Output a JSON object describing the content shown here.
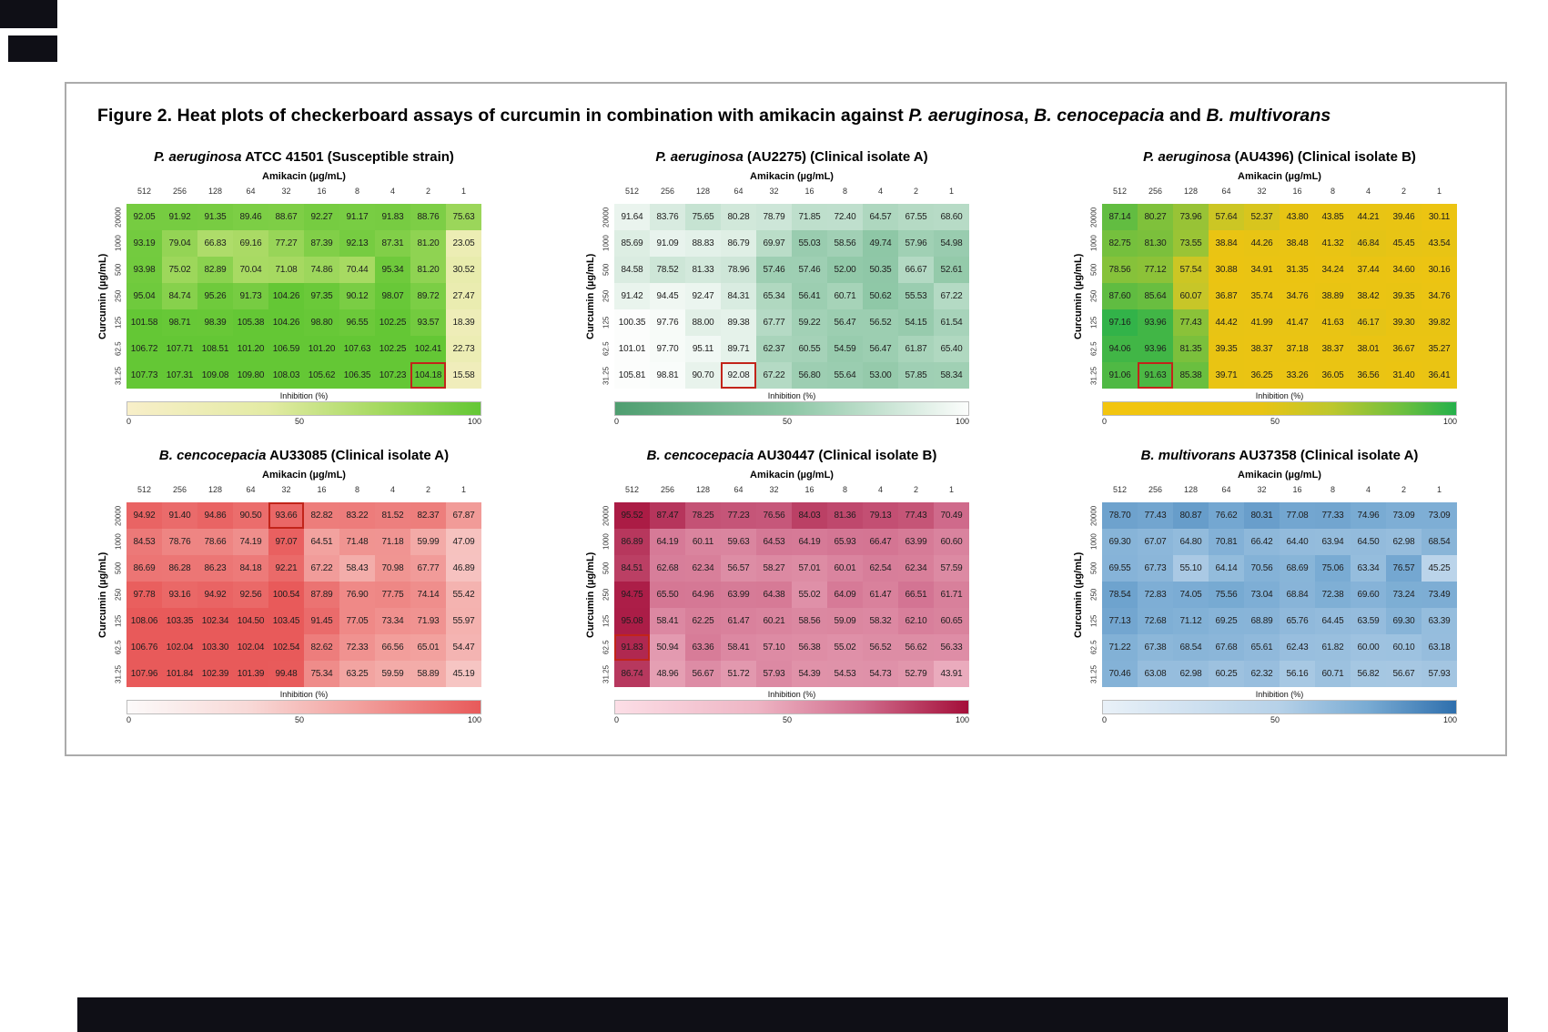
{
  "figure_title_parts": [
    {
      "text": "Figure 2. Heat plots of checkerboard assays of curcumin in combination with amikacin against ",
      "italic": false
    },
    {
      "text": "P. aeruginosa",
      "italic": true
    },
    {
      "text": ", ",
      "italic": false
    },
    {
      "text": "B. cenocepacia",
      "italic": true
    },
    {
      "text": " and ",
      "italic": false
    },
    {
      "text": "B. multivorans",
      "italic": true
    }
  ],
  "chart_data": [
    {
      "type": "heatmap",
      "id": "pa-atcc41501",
      "title_italic": "P. aeruginosa",
      "title_rest": " ATCC 41501 (Susceptible strain)",
      "xlabel": "Amikacin (µg/mL)",
      "ylabel": "Curcumin (µg/mL)",
      "x_ticks": [
        "512",
        "256",
        "128",
        "64",
        "32",
        "16",
        "8",
        "4",
        "2",
        "1"
      ],
      "y_ticks": [
        "20000",
        "1000",
        "500",
        "250",
        "125",
        "62.5",
        "31.25"
      ],
      "values": [
        [
          92.05,
          91.92,
          91.35,
          89.46,
          88.67,
          92.27,
          91.17,
          91.83,
          88.76,
          75.63
        ],
        [
          93.19,
          79.04,
          66.83,
          69.16,
          77.27,
          87.39,
          92.13,
          87.31,
          81.2,
          23.05
        ],
        [
          93.98,
          75.02,
          82.89,
          70.04,
          71.08,
          74.86,
          70.44,
          95.34,
          81.2,
          30.52
        ],
        [
          95.04,
          84.74,
          95.26,
          91.73,
          104.26,
          97.35,
          90.12,
          98.07,
          89.72,
          27.47
        ],
        [
          101.58,
          98.71,
          98.39,
          105.38,
          104.26,
          98.8,
          96.55,
          102.25,
          93.57,
          18.39
        ],
        [
          106.72,
          107.71,
          108.51,
          101.2,
          106.59,
          101.2,
          107.63,
          102.25,
          102.41,
          22.73
        ],
        [
          107.73,
          107.31,
          109.08,
          109.8,
          108.03,
          105.62,
          106.35,
          107.23,
          104.18,
          15.58
        ]
      ],
      "highlight_cell": {
        "row": 6,
        "col": 8
      },
      "colorbar": {
        "label": "Inhibition (%)",
        "ticks": [
          "0",
          "50",
          "100"
        ],
        "range": [
          0,
          100
        ]
      },
      "gradient": [
        {
          "pos": 0.0,
          "color": "#f8efc9"
        },
        {
          "pos": 0.4,
          "color": "#e3eba4"
        },
        {
          "pos": 0.7,
          "color": "#a8da63"
        },
        {
          "pos": 1.0,
          "color": "#64c735"
        }
      ]
    },
    {
      "type": "heatmap",
      "id": "pa-au2275",
      "title_italic": "P. aeruginosa",
      "title_rest": " (AU2275) (Clinical isolate A)",
      "xlabel": "Amikacin (µg/mL)",
      "ylabel": "Curcumin (µg/mL)",
      "x_ticks": [
        "512",
        "256",
        "128",
        "64",
        "32",
        "16",
        "8",
        "4",
        "2",
        "1"
      ],
      "y_ticks": [
        "20000",
        "1000",
        "500",
        "250",
        "125",
        "62.5",
        "31.25"
      ],
      "values": [
        [
          91.64,
          83.76,
          75.65,
          80.28,
          78.79,
          71.85,
          72.4,
          64.57,
          67.55,
          68.6
        ],
        [
          85.69,
          91.09,
          88.83,
          86.79,
          69.97,
          55.03,
          58.56,
          49.74,
          57.96,
          54.98
        ],
        [
          84.58,
          78.52,
          81.33,
          78.96,
          57.46,
          57.46,
          52.0,
          50.35,
          66.67,
          52.61
        ],
        [
          91.42,
          94.45,
          92.47,
          84.31,
          65.34,
          56.41,
          60.71,
          50.62,
          55.53,
          67.22
        ],
        [
          100.35,
          97.76,
          88.0,
          89.38,
          67.77,
          59.22,
          56.47,
          56.52,
          54.15,
          61.54
        ],
        [
          101.01,
          97.7,
          95.11,
          89.71,
          62.37,
          60.55,
          54.59,
          56.47,
          61.87,
          65.4
        ],
        [
          105.81,
          98.81,
          90.7,
          92.08,
          67.22,
          56.8,
          55.64,
          53.0,
          57.85,
          58.34
        ]
      ],
      "highlight_cell": {
        "row": 6,
        "col": 3
      },
      "colorbar": {
        "label": "Inhibition (%)",
        "ticks": [
          "0",
          "50",
          "100"
        ],
        "range": [
          0,
          100
        ]
      },
      "gradient": [
        {
          "pos": 0.0,
          "color": "#4f9e70"
        },
        {
          "pos": 0.5,
          "color": "#8ec7a6"
        },
        {
          "pos": 1.0,
          "color": "#fcfdfc"
        }
      ]
    },
    {
      "type": "heatmap",
      "id": "pa-au4396",
      "title_italic": "P. aeruginosa",
      "title_rest": " (AU4396) (Clinical isolate B)",
      "xlabel": "Amikacin (µg/mL)",
      "ylabel": "Curcumin (µg/mL)",
      "x_ticks": [
        "512",
        "256",
        "128",
        "64",
        "32",
        "16",
        "8",
        "4",
        "2",
        "1"
      ],
      "y_ticks": [
        "20000",
        "1000",
        "500",
        "250",
        "125",
        "62.5",
        "31.25"
      ],
      "values": [
        [
          87.14,
          80.27,
          73.96,
          57.64,
          52.37,
          43.8,
          43.85,
          44.21,
          39.46,
          30.11
        ],
        [
          82.75,
          81.3,
          73.55,
          38.84,
          44.26,
          38.48,
          41.32,
          46.84,
          45.45,
          43.54
        ],
        [
          78.56,
          77.12,
          57.54,
          30.88,
          34.91,
          31.35,
          34.24,
          37.44,
          34.6,
          30.16
        ],
        [
          87.6,
          85.64,
          60.07,
          36.87,
          35.74,
          34.76,
          38.89,
          38.42,
          39.35,
          34.76
        ],
        [
          97.16,
          93.96,
          77.43,
          44.42,
          41.99,
          41.47,
          41.63,
          46.17,
          39.3,
          39.82
        ],
        [
          94.06,
          93.96,
          81.35,
          39.35,
          38.37,
          37.18,
          38.37,
          38.01,
          36.67,
          35.27
        ],
        [
          91.06,
          91.63,
          85.38,
          39.71,
          36.25,
          33.26,
          36.05,
          36.56,
          31.4,
          36.41
        ]
      ],
      "highlight_cell": {
        "row": 6,
        "col": 1
      },
      "colorbar": {
        "label": "Inhibition (%)",
        "ticks": [
          "0",
          "50",
          "100"
        ],
        "range": [
          0,
          100
        ]
      },
      "gradient": [
        {
          "pos": 0.0,
          "color": "#f3c50f"
        },
        {
          "pos": 0.45,
          "color": "#e8c414"
        },
        {
          "pos": 0.65,
          "color": "#bcc72e"
        },
        {
          "pos": 0.85,
          "color": "#6cbf3f"
        },
        {
          "pos": 1.0,
          "color": "#24b04b"
        }
      ]
    },
    {
      "type": "heatmap",
      "id": "bc-au33085",
      "title_italic": "B. cencocepacia",
      "title_rest": "  AU33085 (Clinical isolate A)",
      "xlabel": "Amikacin (µg/mL)",
      "ylabel": "Curcumin (µg/mL)",
      "x_ticks": [
        "512",
        "256",
        "128",
        "64",
        "32",
        "16",
        "8",
        "4",
        "2",
        "1"
      ],
      "y_ticks": [
        "20000",
        "1000",
        "500",
        "250",
        "125",
        "62.5",
        "31.25"
      ],
      "values": [
        [
          94.92,
          91.4,
          94.86,
          90.5,
          93.66,
          82.82,
          83.22,
          81.52,
          82.37,
          67.87
        ],
        [
          84.53,
          78.76,
          78.66,
          74.19,
          97.07,
          64.51,
          71.48,
          71.18,
          59.99,
          47.09
        ],
        [
          86.69,
          86.28,
          86.23,
          84.18,
          92.21,
          67.22,
          58.43,
          70.98,
          67.77,
          46.89
        ],
        [
          97.78,
          93.16,
          94.92,
          92.56,
          100.54,
          87.89,
          76.9,
          77.75,
          74.14,
          55.42
        ],
        [
          108.06,
          103.35,
          102.34,
          104.5,
          103.45,
          91.45,
          77.05,
          73.34,
          71.93,
          55.97
        ],
        [
          106.76,
          102.04,
          103.3,
          102.04,
          102.54,
          82.62,
          72.33,
          66.56,
          65.01,
          54.47
        ],
        [
          107.96,
          101.84,
          102.39,
          101.39,
          99.48,
          75.34,
          63.25,
          59.59,
          58.89,
          45.19
        ]
      ],
      "highlight_cell": {
        "row": 0,
        "col": 4
      },
      "colorbar": {
        "label": "Inhibition (%)",
        "ticks": [
          "0",
          "50",
          "100"
        ],
        "range": [
          0,
          100
        ]
      },
      "gradient": [
        {
          "pos": 0.0,
          "color": "#fcfafa"
        },
        {
          "pos": 0.35,
          "color": "#f8d8d6"
        },
        {
          "pos": 0.65,
          "color": "#f2a19e"
        },
        {
          "pos": 1.0,
          "color": "#e85a5a"
        }
      ]
    },
    {
      "type": "heatmap",
      "id": "bc-au30447",
      "title_italic": "B. cencocepacia",
      "title_rest": "  AU30447 (Clinical isolate B)",
      "xlabel": "Amikacin (µg/mL)",
      "ylabel": "Curcumin (µg/mL)",
      "x_ticks": [
        "512",
        "256",
        "128",
        "64",
        "32",
        "16",
        "8",
        "4",
        "2",
        "1"
      ],
      "y_ticks": [
        "20000",
        "1000",
        "500",
        "250",
        "125",
        "62.5",
        "31.25"
      ],
      "values": [
        [
          95.52,
          87.47,
          78.25,
          77.23,
          76.56,
          84.03,
          81.36,
          79.13,
          77.43,
          70.49
        ],
        [
          86.89,
          64.19,
          60.11,
          59.63,
          64.53,
          64.19,
          65.93,
          66.47,
          63.99,
          60.6
        ],
        [
          84.51,
          62.68,
          62.34,
          56.57,
          58.27,
          57.01,
          60.01,
          62.54,
          62.34,
          57.59
        ],
        [
          94.75,
          65.5,
          64.96,
          63.99,
          64.38,
          55.02,
          64.09,
          61.47,
          66.51,
          61.71
        ],
        [
          95.08,
          58.41,
          62.25,
          61.47,
          60.21,
          58.56,
          59.09,
          58.32,
          62.1,
          60.65
        ],
        [
          91.83,
          50.94,
          63.36,
          58.41,
          57.1,
          56.38,
          55.02,
          56.52,
          56.62,
          56.33
        ],
        [
          86.74,
          48.96,
          56.67,
          51.72,
          57.93,
          54.39,
          54.53,
          54.73,
          52.79,
          43.91
        ]
      ],
      "highlight_cell": {
        "row": 5,
        "col": 0
      },
      "colorbar": {
        "label": "Inhibition (%)",
        "ticks": [
          "0",
          "50",
          "100"
        ],
        "range": [
          0,
          100
        ]
      },
      "gradient": [
        {
          "pos": 0.0,
          "color": "#fcdee6"
        },
        {
          "pos": 0.4,
          "color": "#eeb5c4"
        },
        {
          "pos": 0.7,
          "color": "#d06c8c"
        },
        {
          "pos": 1.0,
          "color": "#a40e39"
        }
      ]
    },
    {
      "type": "heatmap",
      "id": "bm-au37358",
      "title_italic": "B. multivorans",
      "title_rest": " AU37358 (Clinical isolate A)",
      "xlabel": "Amikacin (µg/mL)",
      "ylabel": "Curcumin (µg/mL)",
      "x_ticks": [
        "512",
        "256",
        "128",
        "64",
        "32",
        "16",
        "8",
        "4",
        "2",
        "1"
      ],
      "y_ticks": [
        "20000",
        "1000",
        "500",
        "250",
        "125",
        "62.5",
        "31.25"
      ],
      "values": [
        [
          78.7,
          77.43,
          80.87,
          76.62,
          80.31,
          77.08,
          77.33,
          74.96,
          73.09,
          73.09
        ],
        [
          69.3,
          67.07,
          64.8,
          70.81,
          66.42,
          64.4,
          63.94,
          64.5,
          62.98,
          68.54
        ],
        [
          69.55,
          67.73,
          55.1,
          64.14,
          70.56,
          68.69,
          75.06,
          63.34,
          76.57,
          45.25
        ],
        [
          78.54,
          72.83,
          74.05,
          75.56,
          73.04,
          68.84,
          72.38,
          69.6,
          73.24,
          73.49
        ],
        [
          77.13,
          72.68,
          71.12,
          69.25,
          68.89,
          65.76,
          64.45,
          63.59,
          69.3,
          63.39
        ],
        [
          71.22,
          67.38,
          68.54,
          67.68,
          65.61,
          62.43,
          61.82,
          60.0,
          60.1,
          63.18
        ],
        [
          70.46,
          63.08,
          62.98,
          60.25,
          62.32,
          56.16,
          60.71,
          56.82,
          56.67,
          57.93
        ]
      ],
      "highlight_cell": null,
      "colorbar": {
        "label": "Inhibition (%)",
        "ticks": [
          "0",
          "50",
          "100"
        ],
        "range": [
          0,
          100
        ]
      },
      "gradient": [
        {
          "pos": 0.0,
          "color": "#e9f1f8"
        },
        {
          "pos": 0.5,
          "color": "#b6d1e8"
        },
        {
          "pos": 0.75,
          "color": "#79abd3"
        },
        {
          "pos": 1.0,
          "color": "#2e6fad"
        }
      ]
    }
  ]
}
